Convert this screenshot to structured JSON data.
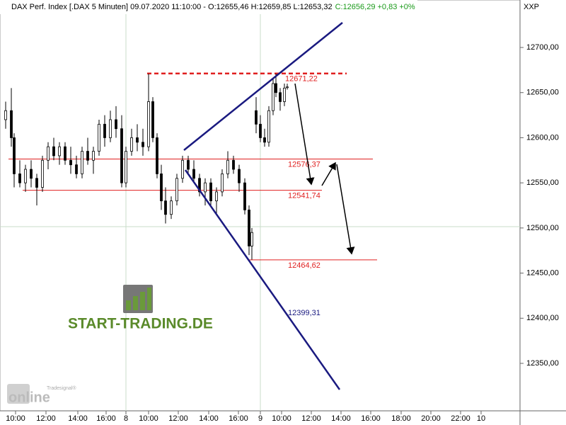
{
  "chart_data": {
    "type": "candlestick",
    "title": "DAX Perf. Index [.DAX  5 Minuten] 09.07.2020 11:10:00 - O:12655,46 H:12659,85 L:12653,32",
    "quote_change": "C:12656,29 +0,83 +0%",
    "symbol_label": "XXP",
    "watermark": "START-TRADING.DE",
    "logo_small": "Tradesignal®",
    "logo_large": "online",
    "x": [
      2,
      4,
      5,
      7,
      9,
      11,
      13,
      15,
      17,
      19,
      21,
      23,
      25,
      27,
      29,
      31,
      33,
      35,
      37,
      39,
      41,
      43,
      44.5,
      46.5,
      48.5,
      50.5,
      52.5,
      54,
      55.5,
      57,
      58.5,
      60.5,
      62.5,
      64.5,
      66.5,
      68.5,
      70.5,
      72.5,
      74.5,
      76.5,
      78.5,
      80.5,
      82.5,
      84.5,
      86.5,
      88,
      89,
      90.5,
      92,
      93.5,
      95,
      96.5,
      97.5,
      99,
      100.5,
      101.5
    ],
    "open": [
      12620,
      12630,
      12600,
      12560,
      12550,
      12565,
      12555,
      12545,
      12575,
      12590,
      12580,
      12590,
      12575,
      12570,
      12560,
      12585,
      12575,
      12585,
      12615,
      12600,
      12620,
      12610,
      12550,
      12585,
      12600,
      12595,
      12590,
      12640,
      12600,
      12560,
      12530,
      12515,
      12530,
      12555,
      12575,
      12565,
      12555,
      12540,
      12550,
      12530,
      12540,
      12560,
      12575,
      12565,
      12550,
      12520,
      12480,
      12630,
      12615,
      12600,
      12595,
      12630,
      12660,
      12650,
      12640,
      12655.46
    ],
    "high": [
      12640,
      12655,
      12605,
      12575,
      12570,
      12575,
      12560,
      12580,
      12595,
      12600,
      12595,
      12595,
      12590,
      12580,
      12590,
      12600,
      12590,
      12620,
      12625,
      12630,
      12635,
      12625,
      12590,
      12610,
      12615,
      12610,
      12671,
      12645,
      12605,
      12570,
      12545,
      12535,
      12560,
      12580,
      12580,
      12575,
      12560,
      12555,
      12555,
      12545,
      12565,
      12585,
      12580,
      12570,
      12555,
      12525,
      12500,
      12645,
      12625,
      12610,
      12635,
      12665,
      12671,
      12655,
      12660,
      12659.85
    ],
    "low": [
      12610,
      12590,
      12545,
      12545,
      12540,
      12545,
      12525,
      12540,
      12565,
      12575,
      12570,
      12570,
      12560,
      12555,
      12555,
      12570,
      12560,
      12580,
      12590,
      12595,
      12600,
      12545,
      12545,
      12580,
      12585,
      12580,
      12585,
      12595,
      12555,
      12520,
      12505,
      12510,
      12525,
      12550,
      12560,
      12550,
      12535,
      12525,
      12525,
      12515,
      12535,
      12555,
      12560,
      12540,
      12515,
      12470,
      12465,
      12605,
      12595,
      12590,
      12590,
      12625,
      12645,
      12630,
      12635,
      12653.32
    ],
    "close": [
      12630,
      12600,
      12560,
      12550,
      12565,
      12555,
      12545,
      12575,
      12590,
      12580,
      12590,
      12575,
      12570,
      12560,
      12585,
      12575,
      12585,
      12615,
      12600,
      12620,
      12610,
      12550,
      12585,
      12600,
      12595,
      12590,
      12640,
      12600,
      12560,
      12530,
      12515,
      12530,
      12555,
      12575,
      12565,
      12555,
      12540,
      12550,
      12530,
      12540,
      12560,
      12575,
      12565,
      12550,
      12520,
      12480,
      12495,
      12615,
      12600,
      12595,
      12630,
      12660,
      12650,
      12640,
      12655,
      12656.29
    ],
    "xlim": [
      0,
      183.75
    ],
    "xticks": [
      {
        "value": 5.5,
        "label": "10:00"
      },
      {
        "value": 16.25,
        "label": "12:00"
      },
      {
        "value": 27.5,
        "label": "14:00"
      },
      {
        "value": 37.5,
        "label": "16:00"
      },
      {
        "value": 44.5,
        "label": "8"
      },
      {
        "value": 52.5,
        "label": "10:00"
      },
      {
        "value": 63,
        "label": "12:00"
      },
      {
        "value": 73.75,
        "label": "14:00"
      },
      {
        "value": 84.25,
        "label": "16:00"
      },
      {
        "value": 92,
        "label": "9"
      },
      {
        "value": 99.5,
        "label": "10:00"
      },
      {
        "value": 110,
        "label": "12:00"
      },
      {
        "value": 120.5,
        "label": "14:00"
      },
      {
        "value": 131,
        "label": "16:00"
      },
      {
        "value": 141.75,
        "label": "18:00"
      },
      {
        "value": 152.25,
        "label": "20:00"
      },
      {
        "value": 162.75,
        "label": "22:00"
      },
      {
        "value": 170,
        "label": "10"
      }
    ],
    "ylim": [
      12297.4,
      12752.6
    ],
    "yticks": [
      {
        "value": 12350,
        "label": "12350,00"
      },
      {
        "value": 12400,
        "label": "12400,00"
      },
      {
        "value": 12450,
        "label": "12450,00"
      },
      {
        "value": 12500,
        "label": "12500,00"
      },
      {
        "value": 12550,
        "label": "12550,00"
      },
      {
        "value": 12600,
        "label": "12600,00"
      },
      {
        "value": 12650,
        "label": "12650,00"
      },
      {
        "value": 12700,
        "label": "12700,00"
      }
    ],
    "levels": [
      {
        "value": 12671.22,
        "label": "12671,22",
        "color": "#e02020"
      },
      {
        "value": 12576.37,
        "label": "12576,37",
        "color": "#e02020"
      },
      {
        "value": 12541.74,
        "label": "12541,74",
        "color": "#e02020"
      },
      {
        "value": 12464.62,
        "label": "12464,62",
        "color": "#e02020"
      },
      {
        "value": 12399.31,
        "label": "12399,31",
        "color": "#1a1a80"
      }
    ]
  }
}
